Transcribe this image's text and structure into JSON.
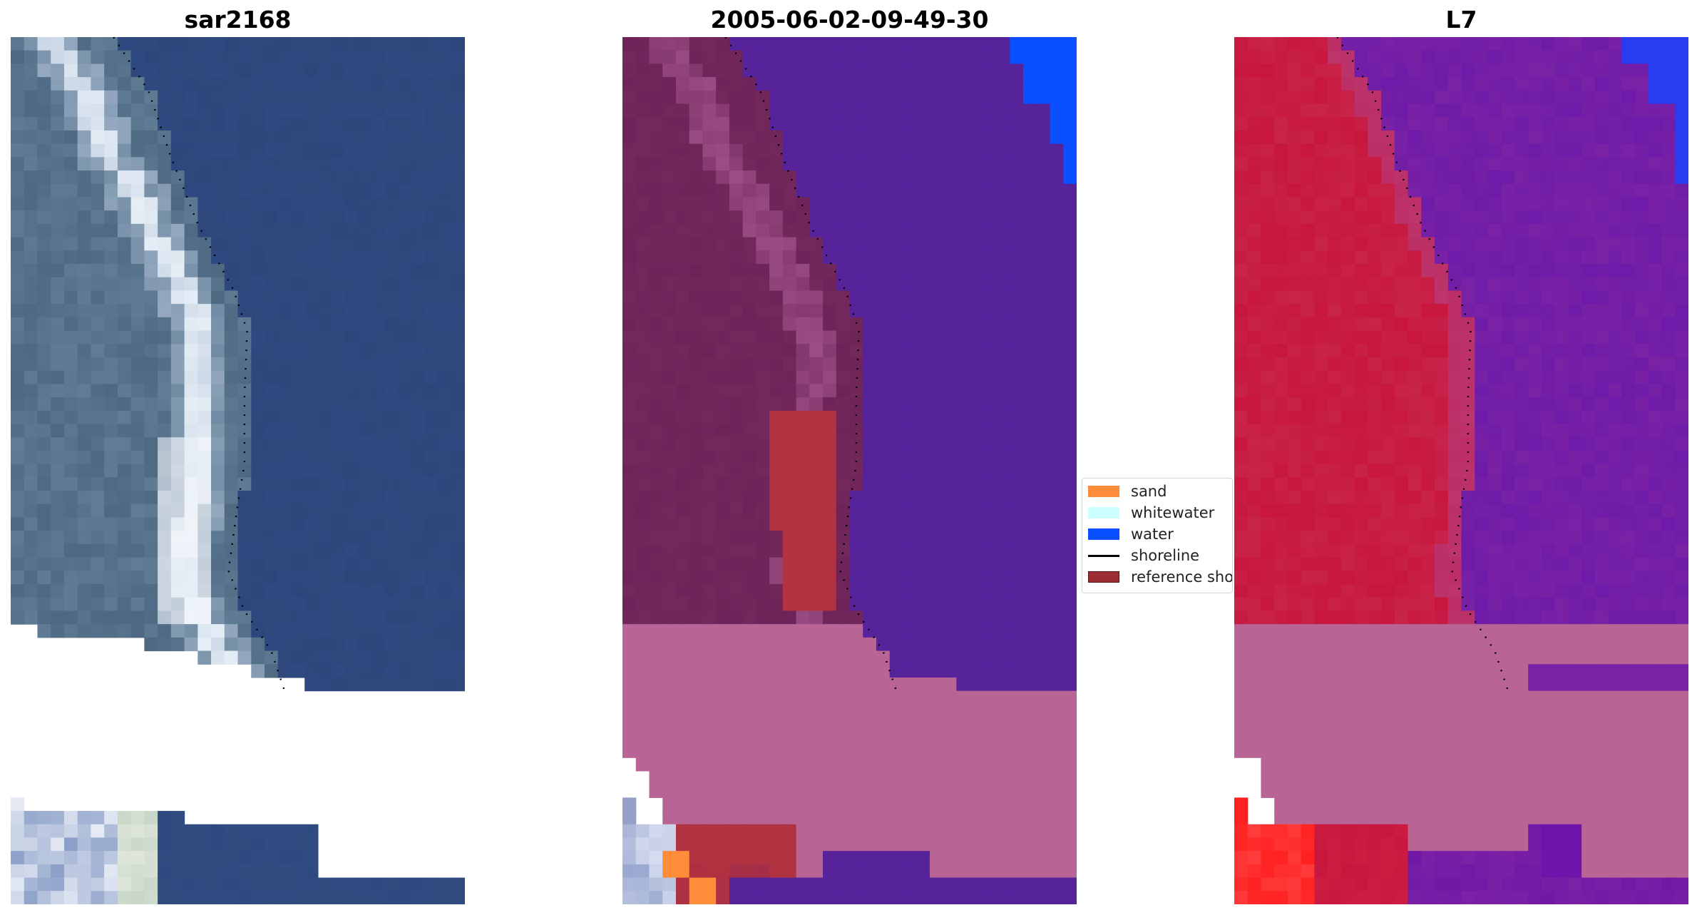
{
  "panels": [
    {
      "title": "sar2168"
    },
    {
      "title": "2005-06-02-09-49-30"
    },
    {
      "title": "L7"
    }
  ],
  "legend": {
    "items": [
      {
        "label": "sand",
        "kind": "patch",
        "color": "#ff8c38"
      },
      {
        "label": "whitewater",
        "kind": "patch",
        "color": "#ccffff"
      },
      {
        "label": "water",
        "kind": "patch",
        "color": "#0a50ff"
      },
      {
        "label": "shoreline",
        "kind": "line",
        "color": "#000000"
      },
      {
        "label": "reference shoreline",
        "kind": "patch",
        "color": "#9b2d33"
      }
    ]
  },
  "chart_data": [
    {
      "type": "image",
      "title": "sar2168",
      "description_colors": {
        "water": "#2f4a80",
        "surf": "#e6eef6",
        "land": "#5f7c94"
      },
      "overlay": "shoreline (dotted black)"
    },
    {
      "type": "image",
      "title": "2005-06-02-09-49-30",
      "classes": [
        "sand",
        "whitewater",
        "water",
        "reference shoreline"
      ],
      "colors": {
        "water_class": "#0a50ff",
        "sea_tint": "#56239b",
        "land_tint": "#6e2458",
        "nodata": "#b86596",
        "sand": "#ff8c38",
        "reference shoreline": "#b13240"
      },
      "overlay": "shoreline (dotted black)"
    },
    {
      "type": "image",
      "title": "L7",
      "colors": {
        "land": "#c8163e",
        "sea": "#7a22a6",
        "nodata": "#b86596",
        "water": "#2a3cf0"
      },
      "overlay": "shoreline (dotted black)"
    }
  ]
}
